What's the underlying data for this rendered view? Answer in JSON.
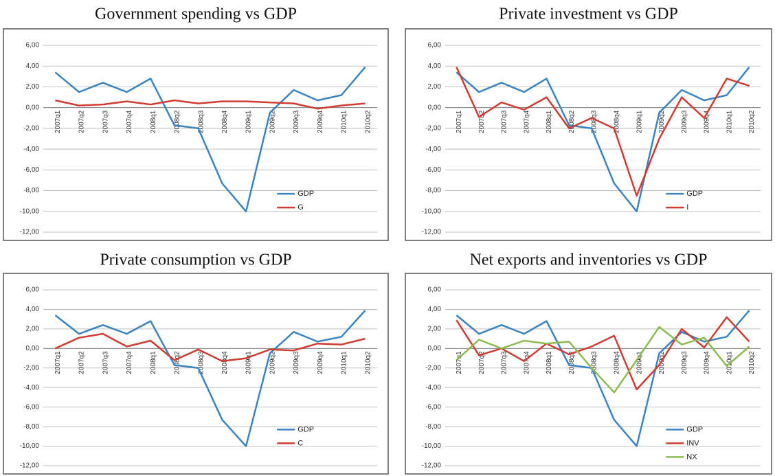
{
  "chart_data": [
    {
      "type": "line",
      "title": "Government spending vs GDP",
      "categories": [
        "2007q1",
        "2007q2",
        "2007q3",
        "2007q4",
        "2008q1",
        "2008q2",
        "2008q3",
        "2008q4",
        "2009q1",
        "2009q2",
        "2009q3",
        "2009q4",
        "2010q1",
        "2010q2"
      ],
      "series": [
        {
          "name": "GDP",
          "color": "#3a84c1",
          "values": [
            3.4,
            1.5,
            2.4,
            1.5,
            2.8,
            -1.7,
            -2.0,
            -7.3,
            -10.0,
            -0.5,
            1.7,
            0.7,
            1.2,
            3.9
          ]
        },
        {
          "name": "G",
          "color": "#d03b33",
          "values": [
            0.7,
            0.2,
            0.3,
            0.6,
            0.3,
            0.7,
            0.4,
            0.6,
            0.6,
            0.5,
            0.4,
            -0.1,
            0.2,
            0.4
          ]
        }
      ],
      "ylim": [
        -12,
        6
      ],
      "yticks": [
        {
          "value": -12,
          "label": "-12,00"
        },
        {
          "value": -10,
          "label": "-10,00"
        },
        {
          "value": -8,
          "label": "-8,00"
        },
        {
          "value": -6,
          "label": "-6,00"
        },
        {
          "value": -4,
          "label": "-4,00"
        },
        {
          "value": -2,
          "label": "-2,00"
        },
        {
          "value": 0,
          "label": "0,00"
        },
        {
          "value": 2,
          "label": "2,00"
        },
        {
          "value": 4,
          "label": "4,00"
        },
        {
          "value": 6,
          "label": "6,00"
        }
      ],
      "grid": true
    },
    {
      "type": "line",
      "title": "Private investment vs GDP",
      "categories": [
        "2007q1",
        "2007q2",
        "2007q3",
        "2007q4",
        "2008q1",
        "2008q2",
        "2008q3",
        "2008q4",
        "2009q1",
        "2009q2",
        "2009q3",
        "2009q4",
        "2010q1",
        "2010q2"
      ],
      "series": [
        {
          "name": "GDP",
          "color": "#3a84c1",
          "values": [
            3.4,
            1.5,
            2.4,
            1.5,
            2.8,
            -1.7,
            -2.0,
            -7.3,
            -10.0,
            -0.5,
            1.7,
            0.7,
            1.2,
            3.9
          ]
        },
        {
          "name": "I",
          "color": "#d03b33",
          "values": [
            3.9,
            -0.9,
            0.5,
            -0.2,
            1.0,
            -2.0,
            -1.0,
            -2.0,
            -8.5,
            -3.0,
            1.0,
            -1.0,
            2.8,
            2.1
          ]
        }
      ],
      "ylim": [
        -12,
        6
      ],
      "yticks": [
        {
          "value": -12,
          "label": "-12,00"
        },
        {
          "value": -10,
          "label": "-10,00"
        },
        {
          "value": -8,
          "label": "-8,00"
        },
        {
          "value": -6,
          "label": "-6,00"
        },
        {
          "value": -4,
          "label": "-4,00"
        },
        {
          "value": -2,
          "label": "-2,00"
        },
        {
          "value": 0,
          "label": "0,00"
        },
        {
          "value": 2,
          "label": "2,00"
        },
        {
          "value": 4,
          "label": "4,00"
        },
        {
          "value": 6,
          "label": "6,00"
        }
      ],
      "grid": true
    },
    {
      "type": "line",
      "title": "Private consumption vs GDP",
      "categories": [
        "2007q1",
        "2007q2",
        "2007q3",
        "2007q4",
        "2008q1",
        "2008q2",
        "2008q3",
        "2008q4",
        "2009q1",
        "2009q2",
        "2009q3",
        "2009q4",
        "2010q1",
        "2010q2"
      ],
      "series": [
        {
          "name": "GDP",
          "color": "#3a84c1",
          "values": [
            3.4,
            1.5,
            2.4,
            1.5,
            2.8,
            -1.7,
            -2.0,
            -7.3,
            -10.0,
            -0.5,
            1.7,
            0.7,
            1.2,
            3.9
          ]
        },
        {
          "name": "C",
          "color": "#d03b33",
          "values": [
            0.0,
            1.1,
            1.5,
            0.2,
            0.8,
            -1.2,
            -0.1,
            -1.3,
            -1.0,
            -0.1,
            -0.2,
            0.5,
            0.4,
            1.0
          ]
        }
      ],
      "ylim": [
        -12,
        6
      ],
      "yticks": [
        {
          "value": -12,
          "label": "-12,00"
        },
        {
          "value": -10,
          "label": "-10,00"
        },
        {
          "value": -8,
          "label": "-8,00"
        },
        {
          "value": -6,
          "label": "-6,00"
        },
        {
          "value": -4,
          "label": "-4,00"
        },
        {
          "value": -2,
          "label": "-2,00"
        },
        {
          "value": 0,
          "label": "0,00"
        },
        {
          "value": 2,
          "label": "2,00"
        },
        {
          "value": 4,
          "label": "4,00"
        },
        {
          "value": 6,
          "label": "6,00"
        }
      ],
      "grid": true
    },
    {
      "type": "line",
      "title": "Net exports and inventories vs GDP",
      "categories": [
        "2007q1",
        "2007q2",
        "2007q3",
        "2007q4",
        "2008q1",
        "2008q2",
        "2008q3",
        "2008q4",
        "2009q1",
        "2009q2",
        "2009q3",
        "2009q4",
        "2010q1",
        "2010q2"
      ],
      "series": [
        {
          "name": "GDP",
          "color": "#3a84c1",
          "values": [
            3.4,
            1.5,
            2.4,
            1.5,
            2.8,
            -1.7,
            -2.0,
            -7.3,
            -10.0,
            -0.5,
            1.7,
            0.7,
            1.2,
            3.9
          ]
        },
        {
          "name": "INV",
          "color": "#d03b33",
          "values": [
            2.9,
            -0.7,
            0.0,
            -1.3,
            0.5,
            -0.6,
            0.2,
            1.3,
            -4.2,
            -1.7,
            2.0,
            0.1,
            3.2,
            0.7
          ]
        },
        {
          "name": "NX",
          "color": "#8cbb4f",
          "values": [
            -1.2,
            0.9,
            0.0,
            0.8,
            0.5,
            0.7,
            -2.0,
            -4.5,
            -1.2,
            2.2,
            0.4,
            1.1,
            -1.8,
            0.2
          ]
        }
      ],
      "ylim": [
        -12,
        6
      ],
      "yticks": [
        {
          "value": -12,
          "label": "-12,00"
        },
        {
          "value": -10,
          "label": "-10,00"
        },
        {
          "value": -8,
          "label": "-8,00"
        },
        {
          "value": -6,
          "label": "-6,00"
        },
        {
          "value": -4,
          "label": "-4,00"
        },
        {
          "value": -2,
          "label": "-2,00"
        },
        {
          "value": 0,
          "label": "0,00"
        },
        {
          "value": 2,
          "label": "2,00"
        },
        {
          "value": 4,
          "label": "4,00"
        },
        {
          "value": 6,
          "label": "6,00"
        }
      ],
      "grid": true
    }
  ]
}
